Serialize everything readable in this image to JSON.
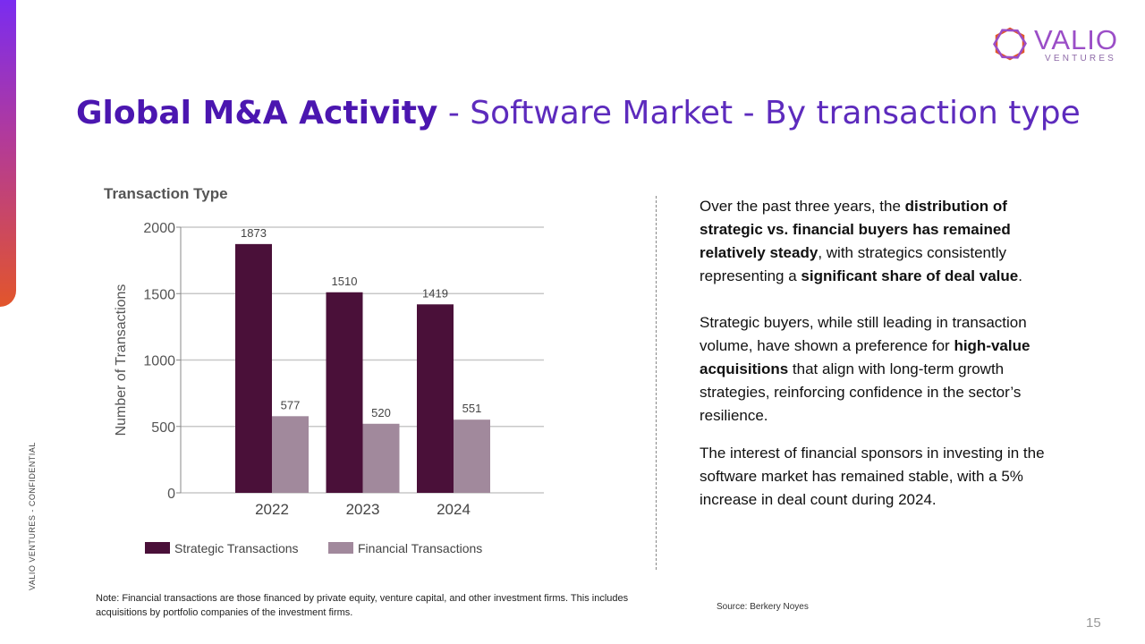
{
  "brand": {
    "name": "VALIO",
    "sub": "VENTURES",
    "confidential": "VALIO VENTURES - CONFIDENTIAL",
    "colors": {
      "accent_top": "#7a2cf0",
      "accent_bottom": "#e2552b",
      "title": "#4b16b0"
    }
  },
  "title": {
    "bold": "Global M&A Activity",
    "rest": " - Software Market - By transaction type"
  },
  "chart_data": {
    "type": "bar",
    "title": "Transaction Type",
    "ylabel": "Number of Transactions",
    "xlabel": "",
    "ylim": [
      0,
      2000
    ],
    "yticks": [
      0,
      500,
      1000,
      1500,
      2000
    ],
    "categories": [
      "2022",
      "2023",
      "2024"
    ],
    "series": [
      {
        "name": "Strategic Transactions",
        "values": [
          1873,
          1510,
          1419
        ],
        "color": "#4a1039"
      },
      {
        "name": "Financial Transactions",
        "values": [
          577,
          520,
          551
        ],
        "color": "#a1899c"
      }
    ],
    "grid": true,
    "legend": "bottom-left"
  },
  "commentary": {
    "p1_a": "Over the past three years, the ",
    "p1_b": "distribution of strategic vs. financial buyers has remained relatively steady",
    "p1_c": ", with strategics consistently representing a ",
    "p1_d": "significant share of deal value",
    "p1_e": ".",
    "p2_a": "Strategic buyers, while still leading in transaction volume, have shown a preference for ",
    "p2_b": "high-value acquisitions",
    "p2_c": " that align with long-term growth strategies, reinforcing confidence in the sector’s resilience.",
    "p3": "The interest of financial sponsors in investing in the software market has remained stable, with a 5% increase in deal count during 2024."
  },
  "note": "Note: Financial transactions are those financed by private equity, venture capital, and other investment firms. This includes acquisitions by portfolio companies of the investment firms.",
  "source": "Source: Berkery Noyes",
  "page_number": "15"
}
